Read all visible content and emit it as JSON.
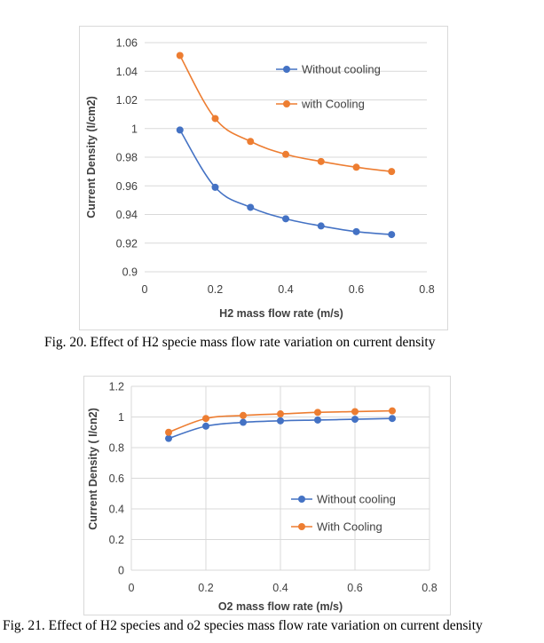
{
  "figure1": {
    "caption": "Fig. 20. Effect of H2 specie mass flow rate variation on current density"
  },
  "figure2": {
    "caption": "Fig. 21.  Effect of H2 species and o2 species mass flow rate variation on current density"
  },
  "chart_data": [
    {
      "type": "scatter",
      "xlabel": "H2 mass flow rate (m/s)",
      "ylabel": "Current Density (I/cm2)",
      "xlim": [
        0,
        0.8
      ],
      "ylim": [
        0.9,
        1.06
      ],
      "x_ticks": [
        0,
        0.2,
        0.4,
        0.6,
        0.8
      ],
      "x_tick_labels": [
        "0",
        "0.2",
        "0.4",
        "0.6",
        "0.8"
      ],
      "y_ticks": [
        0.9,
        0.92,
        0.94,
        0.96,
        0.98,
        1,
        1.02,
        1.04,
        1.06
      ],
      "y_tick_labels": [
        "0.9",
        "0.92",
        "0.94",
        "0.96",
        "0.98",
        "1",
        "1.02",
        "1.04",
        "1.06"
      ],
      "grid": "horizontal",
      "legend_position": "right",
      "smooth": true,
      "x": [
        0.1,
        0.2,
        0.3,
        0.4,
        0.5,
        0.6,
        0.7
      ],
      "series": [
        {
          "name": "Without cooling",
          "color": "#4472c4",
          "values": [
            0.999,
            0.959,
            0.945,
            0.937,
            0.932,
            0.928,
            0.926
          ]
        },
        {
          "name": "with Cooling",
          "color": "#ed7d31",
          "values": [
            1.051,
            1.007,
            0.991,
            0.982,
            0.977,
            0.973,
            0.97
          ]
        }
      ]
    },
    {
      "type": "scatter",
      "xlabel": "O2 mass flow rate (m/s)",
      "ylabel": "Current Density ( I/cn2)",
      "xlim": [
        0,
        0.8
      ],
      "ylim": [
        0,
        1.2
      ],
      "x_ticks": [
        0,
        0.2,
        0.4,
        0.6,
        0.8
      ],
      "x_tick_labels": [
        "0",
        "0.2",
        "0.4",
        "0.6",
        "0.8"
      ],
      "y_ticks": [
        0,
        0.2,
        0.4,
        0.6,
        0.8,
        1,
        1.2
      ],
      "y_tick_labels": [
        "0",
        "0.2",
        "0.4",
        "0.6",
        "0.8",
        "1",
        "1.2"
      ],
      "grid": "both",
      "legend_position": "bottom-right",
      "smooth": true,
      "x": [
        0.1,
        0.2,
        0.3,
        0.4,
        0.5,
        0.6,
        0.7
      ],
      "series": [
        {
          "name": "Without cooling",
          "color": "#4472c4",
          "values": [
            0.86,
            0.94,
            0.965,
            0.975,
            0.98,
            0.985,
            0.99
          ]
        },
        {
          "name": "With Cooling",
          "color": "#ed7d31",
          "values": [
            0.9,
            0.99,
            1.01,
            1.02,
            1.03,
            1.035,
            1.04
          ]
        }
      ]
    }
  ]
}
